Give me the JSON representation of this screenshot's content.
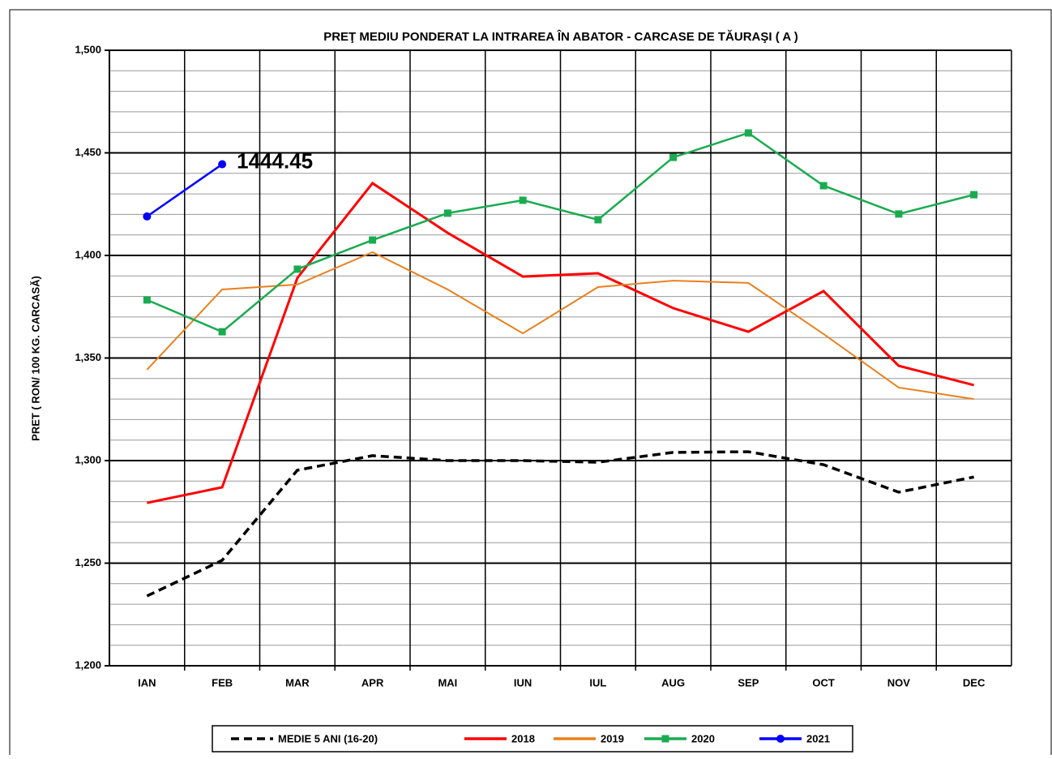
{
  "chart_data": {
    "type": "line",
    "title": "PREŢ MEDIU PONDERAT LA INTRAREA ÎN ABATOR - CARCASE DE TĂURAŞI ( A )",
    "y_label": "PRET ( RON/ 100 KG. CARCASĂ)",
    "categories": [
      "IAN",
      "FEB",
      "MAR",
      "APR",
      "MAI",
      "IUN",
      "IUL",
      "AUG",
      "SEP",
      "OCT",
      "NOV",
      "DEC"
    ],
    "ylim": [
      1200,
      1500
    ],
    "yticks": [
      {
        "value": 1200,
        "label": "1,200"
      },
      {
        "value": 1250,
        "label": "1,250"
      },
      {
        "value": 1300,
        "label": "1,300"
      },
      {
        "value": 1350,
        "label": "1,350"
      },
      {
        "value": 1400,
        "label": "1,400"
      },
      {
        "value": 1450,
        "label": "1,450"
      },
      {
        "value": 1500,
        "label": "1,500"
      }
    ],
    "grid": true,
    "legend": "bottom",
    "series": [
      {
        "name": "MEDIE 5 ANI (16-20)",
        "color": "#000000",
        "linestyle": "dashed",
        "values": [
          1234,
          1251.4,
          1295.3,
          1302.4,
          1300,
          1300,
          1299.2,
          1304,
          1304.3,
          1298,
          1284.6,
          1292
        ]
      },
      {
        "name": "2018",
        "color": "#ff0000",
        "linestyle": "solid",
        "values": [
          1279.4,
          1287,
          1389,
          1435.2,
          1411,
          1389.7,
          1391.3,
          1374.3,
          1362.8,
          1382.6,
          1346.2,
          1336.8
        ]
      },
      {
        "name": "2019",
        "color": "#e8801e",
        "linestyle": "solid",
        "values": [
          1344.3,
          1383.4,
          1385.8,
          1401.6,
          1383.4,
          1362,
          1384.6,
          1387.7,
          1386.6,
          1361.7,
          1335.6,
          1330
        ]
      },
      {
        "name": "2020",
        "color": "#1aab50",
        "linestyle": "solid",
        "marker": "square",
        "values": [
          1378.3,
          1362.8,
          1393.3,
          1407.5,
          1420.6,
          1426.9,
          1417.4,
          1447.8,
          1459.7,
          1434,
          1420.2,
          1429.6
        ]
      },
      {
        "name": "2021",
        "color": "#0000ff",
        "linestyle": "solid",
        "marker": "circle",
        "values": [
          1419,
          1444.45,
          null,
          null,
          null,
          null,
          null,
          null,
          null,
          null,
          null,
          null
        ],
        "value_labels": [
          null,
          "1444.45",
          null,
          null,
          null,
          null,
          null,
          null,
          null,
          null,
          null,
          null
        ]
      }
    ]
  }
}
